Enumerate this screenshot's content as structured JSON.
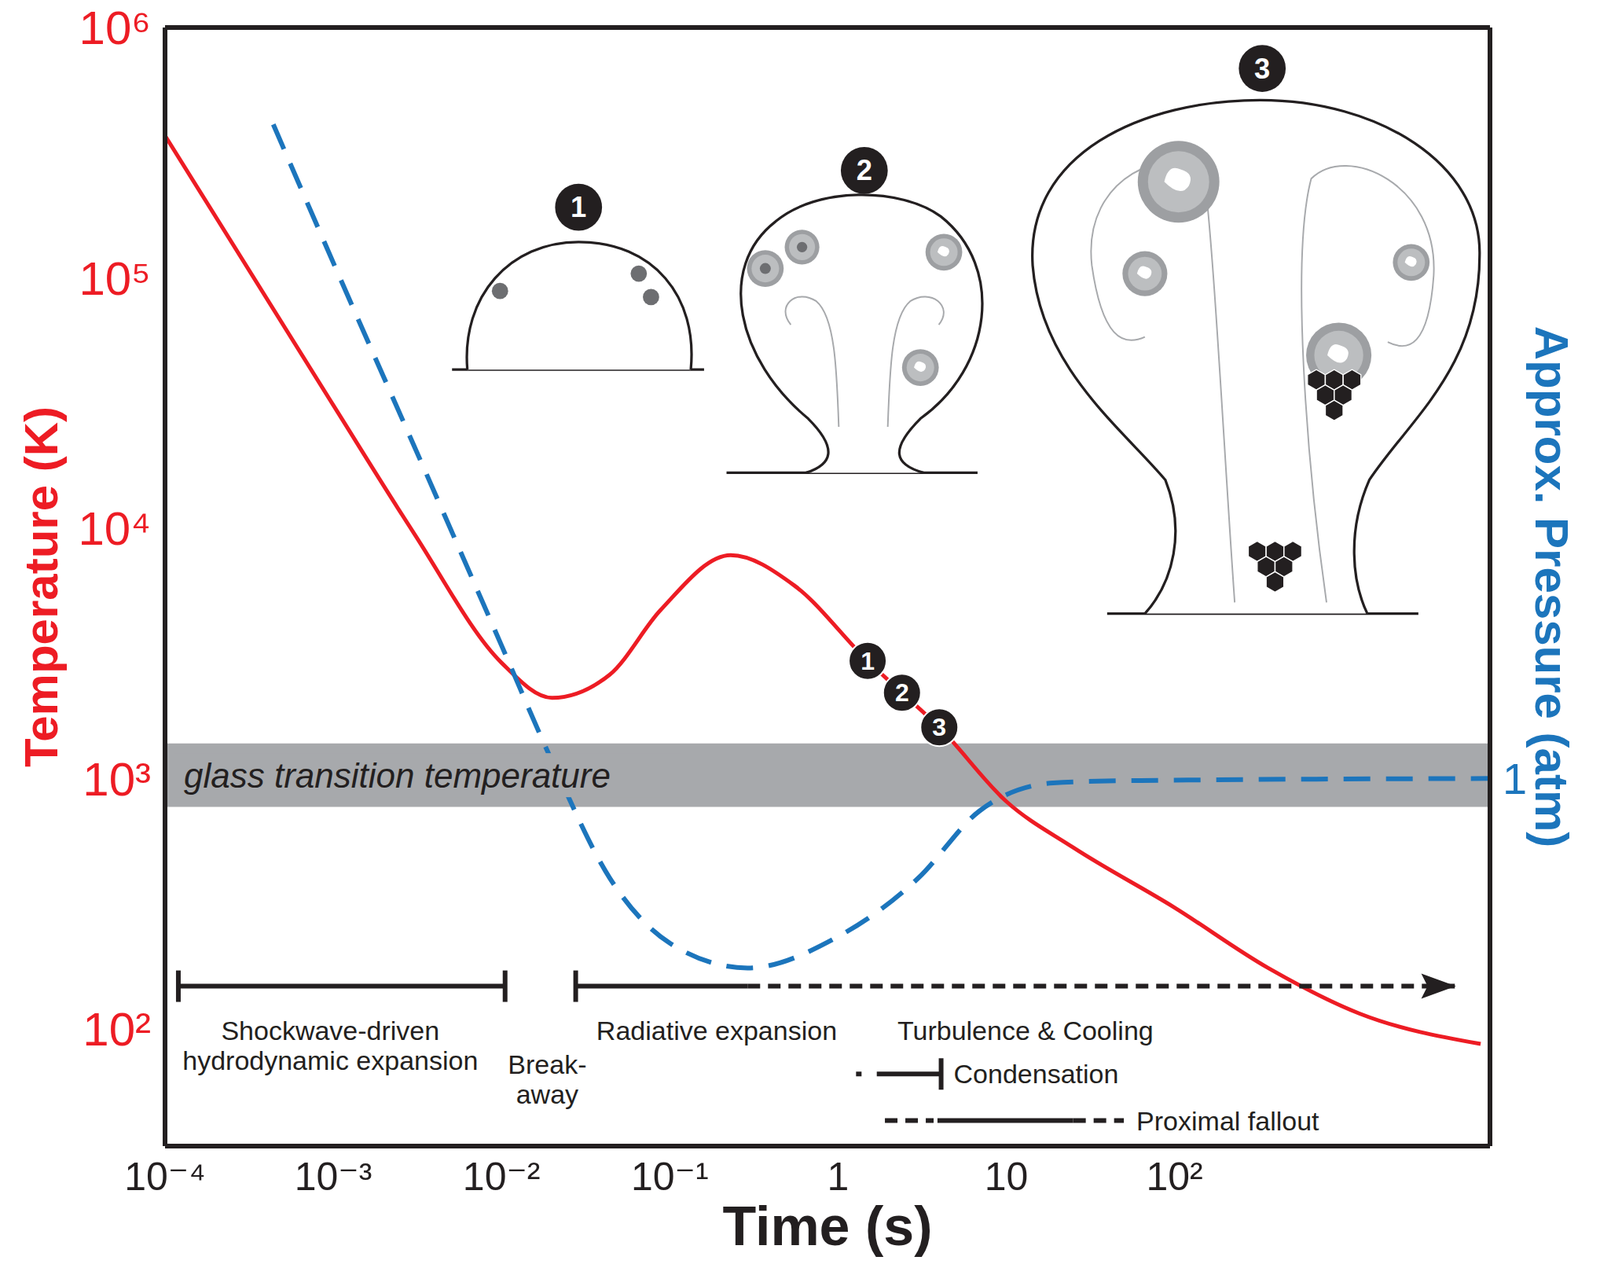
{
  "chart_data": {
    "type": "line",
    "x_label": "Time (s)",
    "y_label": "Temperature (K)",
    "y2_label": "Approx. Pressure (atm)",
    "log": true,
    "xlim": [
      0.0001,
      7500
    ],
    "xticks": [
      {
        "value": 0.0001,
        "label": "10⁻⁴"
      },
      {
        "value": 0.001,
        "label": "10⁻³"
      },
      {
        "value": 0.01,
        "label": "10⁻²"
      },
      {
        "value": 0.1,
        "label": "10⁻¹"
      },
      1,
      10,
      {
        "value": 100,
        "label": "10²"
      }
    ],
    "ylim": [
      34,
      1000000
    ],
    "yticks": [
      {
        "value": 100,
        "label": "10²"
      },
      {
        "value": 1000,
        "label": "10³"
      },
      {
        "value": 10000,
        "label": "10⁴"
      },
      {
        "value": 100000,
        "label": "10⁵"
      },
      {
        "value": 1000000,
        "label": "10⁶"
      }
    ],
    "y2lim": [
      0.034,
      1000
    ],
    "y2ticks": [
      1
    ],
    "series": [
      {
        "color": "#ed1c24",
        "line_style": "solid",
        "x": [
          0.0001,
          0.001,
          0.003,
          0.01,
          0.02,
          0.044,
          0.088,
          0.23,
          0.55,
          1.5,
          2.4,
          4,
          10,
          25,
          100,
          360,
          1260,
          6600
        ],
        "values": [
          370000,
          31000,
          9600,
          2900,
          2100,
          2600,
          4700,
          7800,
          5900,
          2950,
          2200,
          1600,
          810,
          530,
          305,
          175,
          115,
          87
        ]
      },
      {
        "color": "#1c75bc",
        "line_style": "dashed",
        "axis": "y2",
        "x": [
          0.00044,
          0.001,
          0.0034,
          0.01,
          0.02,
          0.044,
          0.1,
          0.29,
          0.96,
          3,
          6.9,
          19,
          50,
          7500
        ],
        "values": [
          410,
          115,
          17.8,
          3.4,
          1.17,
          0.4,
          0.22,
          0.175,
          0.23,
          0.4,
          0.74,
          0.96,
          0.98,
          1.0
        ]
      }
    ],
    "glass_transition": {
      "label": "glass transition temperature",
      "range": [
        770,
        1380
      ],
      "color": "#a7a9ac"
    },
    "stages": [
      {
        "label": "1",
        "x": 1.5,
        "y": 2950
      },
      {
        "label": "2",
        "x": 2.4,
        "y": 2200
      },
      {
        "label": "3",
        "x": 4.0,
        "y": 1600
      }
    ],
    "phases": [
      {
        "label": "Shockwave-driven hydrodynamic expansion",
        "segments": [
          {
            "from": 0.00012,
            "to": 0.0105,
            "line_style": "solid"
          }
        ]
      },
      {
        "label": "Break-away"
      },
      {
        "label": "Radiative expansion",
        "segments": [
          {
            "from": 0.0276,
            "to": 0.29,
            "line_style": "solid"
          },
          {
            "from": 0.29,
            "to": 4700,
            "line_style": "dashed"
          }
        ]
      },
      {
        "label": "Turbulence & Cooling"
      },
      {
        "label": "Condensation",
        "segments": [
          {
            "from": 1.28,
            "to": 1.38,
            "line_style": "solid"
          },
          {
            "from": 1.7,
            "to": 4.1,
            "line_style": "solid"
          }
        ]
      },
      {
        "label": "Proximal fallout",
        "segments": [
          {
            "from": 1.9,
            "to": 3.7,
            "line_style": "dashed"
          },
          {
            "from": 3.9,
            "to": 25,
            "line_style": "solid"
          },
          {
            "from": 25,
            "to": 50,
            "line_style": "dashed"
          }
        ]
      }
    ]
  }
}
